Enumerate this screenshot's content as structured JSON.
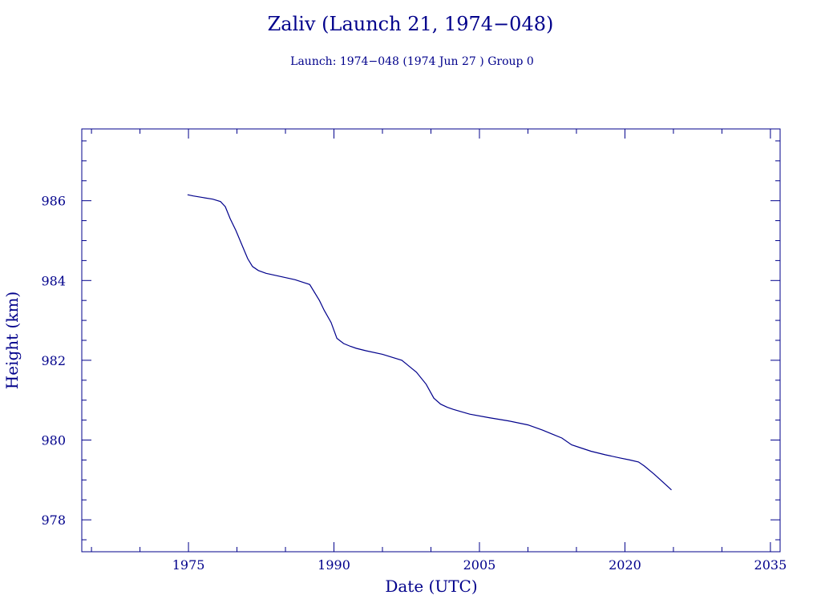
{
  "chart_data": {
    "type": "line",
    "title": "Zaliv (Launch 21, 1974−048)",
    "subtitle": "Launch: 1974−048  (1974 Jun 27 )  Group 0",
    "xlabel": "Date (UTC)",
    "ylabel": "Height (km)",
    "xlim": [
      1964,
      2036
    ],
    "ylim": [
      977.2,
      987.8
    ],
    "x_ticks": [
      1975,
      1990,
      2005,
      2020,
      2035
    ],
    "y_ticks": [
      978,
      980,
      982,
      984,
      986
    ],
    "grid": false,
    "color": "#00008b",
    "series": [
      {
        "x": [
          1974.9,
          1975.5,
          1976.5,
          1977.5,
          1978.3,
          1978.8,
          1979.3,
          1979.9,
          1980.5,
          1981.1,
          1981.6,
          1982.2,
          1983.0,
          1984.5,
          1986.0,
          1987.5,
          1988.5,
          1989.0,
          1989.7,
          1990.3,
          1991.0,
          1991.7,
          1992.3,
          1993.3,
          1995.0,
          1997.0,
          1998.5,
          1999.5,
          2000.3,
          2001.0,
          2001.7,
          2002.3,
          2003.0,
          2004.0,
          2006.0,
          2008.0,
          2010.0,
          2011.5,
          2012.5,
          2013.5,
          2014.5,
          2015.5,
          2016.5,
          2018.0,
          2019.5,
          2020.5,
          2021.4,
          2022.0,
          2023.0,
          2023.9,
          2024.8
        ],
        "y": [
          986.15,
          986.12,
          986.08,
          986.04,
          985.98,
          985.85,
          985.55,
          985.25,
          984.9,
          984.55,
          984.35,
          984.25,
          984.18,
          984.1,
          984.02,
          983.9,
          983.5,
          983.25,
          982.95,
          982.55,
          982.42,
          982.35,
          982.3,
          982.24,
          982.15,
          982.0,
          981.7,
          981.4,
          981.05,
          980.9,
          980.82,
          980.77,
          980.72,
          980.65,
          980.56,
          980.48,
          980.38,
          980.25,
          980.15,
          980.05,
          979.88,
          979.8,
          979.72,
          979.63,
          979.55,
          979.5,
          979.45,
          979.35,
          979.15,
          978.95,
          978.75
        ]
      }
    ]
  }
}
